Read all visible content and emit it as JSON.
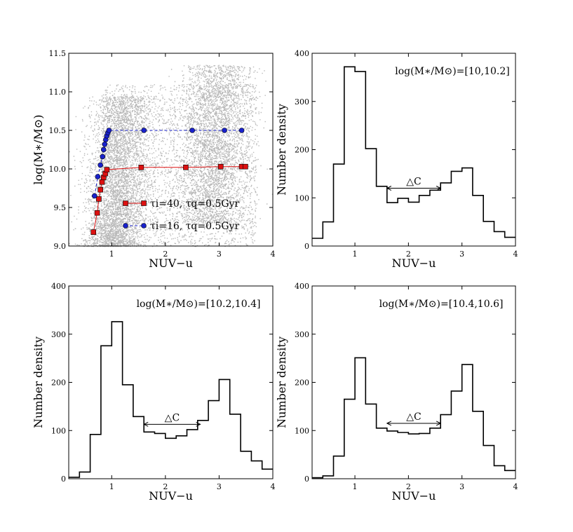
{
  "chart_data": [
    {
      "type": "scatter",
      "xlabel": "NUV−u",
      "ylabel": "log(M∗/M⊙)",
      "xlim": [
        0.2,
        4.0
      ],
      "ylim": [
        9.0,
        11.5
      ],
      "xticks": [
        "1",
        "2",
        "3",
        "4"
      ],
      "yticks": [
        "9.0",
        "9.5",
        "10.0",
        "10.5",
        "11.0",
        "11.5"
      ],
      "background_color": "#b8b8b8",
      "background_description": "dense cloud of grey galaxy points: blue sequence near NUV−u≈1 and red sequence near NUV−u≈3",
      "series": [
        {
          "name": "τi=40, τq=0.5Gyr",
          "color": "#dd1111",
          "marker": "square",
          "line": "solid",
          "x": [
            0.66,
            0.73,
            0.76,
            0.79,
            0.82,
            0.85,
            0.88,
            0.91,
            1.55,
            2.38,
            3.03,
            3.42,
            3.49
          ],
          "y": [
            9.18,
            9.43,
            9.61,
            9.73,
            9.83,
            9.89,
            9.94,
            9.99,
            10.02,
            10.02,
            10.03,
            10.03,
            10.03
          ]
        },
        {
          "name": "τi=16, τq=0.5Gyr",
          "color": "#1a22cc",
          "marker": "circle",
          "line": "dashed",
          "x": [
            0.68,
            0.74,
            0.79,
            0.83,
            0.85,
            0.87,
            0.89,
            0.91,
            0.93,
            0.95,
            1.6,
            2.5,
            3.1,
            3.42
          ],
          "y": [
            9.65,
            9.9,
            10.05,
            10.16,
            10.25,
            10.32,
            10.38,
            10.43,
            10.47,
            10.5,
            10.5,
            10.5,
            10.5,
            10.5
          ]
        }
      ]
    },
    {
      "type": "histogram",
      "xlabel": "NUV−u",
      "ylabel": "Number density",
      "xlim": [
        0.2,
        4.0
      ],
      "ylim": [
        0,
        400
      ],
      "xticks": [
        "1",
        "2",
        "3",
        "4"
      ],
      "yticks": [
        "0",
        "100",
        "200",
        "300",
        "400"
      ],
      "annotation": "log(M∗/M⊙)=[10,10.2]",
      "delta_label": "△C",
      "delta_range": [
        1.6,
        2.6
      ],
      "delta_y": 120,
      "bin_edges": [
        0.2,
        0.4,
        0.6,
        0.8,
        1.0,
        1.2,
        1.4,
        1.6,
        1.8,
        2.0,
        2.2,
        2.4,
        2.6,
        2.8,
        3.0,
        3.2,
        3.4,
        3.6,
        3.8,
        4.0
      ],
      "values": [
        16,
        50,
        170,
        372,
        362,
        202,
        124,
        90,
        99,
        91,
        105,
        116,
        131,
        155,
        162,
        105,
        51,
        30,
        18
      ]
    },
    {
      "type": "histogram",
      "xlabel": "NUV−u",
      "ylabel": "Number density",
      "xlim": [
        0.2,
        4.0
      ],
      "ylim": [
        0,
        400
      ],
      "xticks": [
        "1",
        "2",
        "3",
        "4"
      ],
      "yticks": [
        "0",
        "100",
        "200",
        "300",
        "400"
      ],
      "annotation": "log(M∗/M⊙)=[10.2,10.4]",
      "delta_label": "△C",
      "delta_range": [
        1.6,
        2.65
      ],
      "delta_y": 113,
      "bin_edges": [
        0.2,
        0.4,
        0.6,
        0.8,
        1.0,
        1.2,
        1.4,
        1.6,
        1.8,
        2.0,
        2.2,
        2.4,
        2.6,
        2.8,
        3.0,
        3.2,
        3.4,
        3.6,
        3.8,
        4.0
      ],
      "values": [
        3,
        14,
        92,
        276,
        326,
        195,
        129,
        97,
        94,
        84,
        89,
        102,
        121,
        162,
        206,
        134,
        57,
        37,
        20
      ]
    },
    {
      "type": "histogram",
      "xlabel": "NUV−u",
      "ylabel": "Number density",
      "xlim": [
        0.2,
        4.0
      ],
      "ylim": [
        0,
        400
      ],
      "xticks": [
        "1",
        "2",
        "3",
        "4"
      ],
      "yticks": [
        "0",
        "100",
        "200",
        "300",
        "400"
      ],
      "annotation": "log(M∗/M⊙)=[10.4,10.6]",
      "delta_label": "△C",
      "delta_range": [
        1.6,
        2.6
      ],
      "delta_y": 115,
      "bin_edges": [
        0.2,
        0.4,
        0.6,
        0.8,
        1.0,
        1.2,
        1.4,
        1.6,
        1.8,
        2.0,
        2.2,
        2.4,
        2.6,
        2.8,
        3.0,
        3.2,
        3.4,
        3.6,
        3.8,
        4.0
      ],
      "values": [
        2,
        6,
        47,
        165,
        251,
        155,
        105,
        99,
        96,
        93,
        94,
        105,
        133,
        182,
        237,
        140,
        69,
        27,
        17
      ]
    }
  ]
}
